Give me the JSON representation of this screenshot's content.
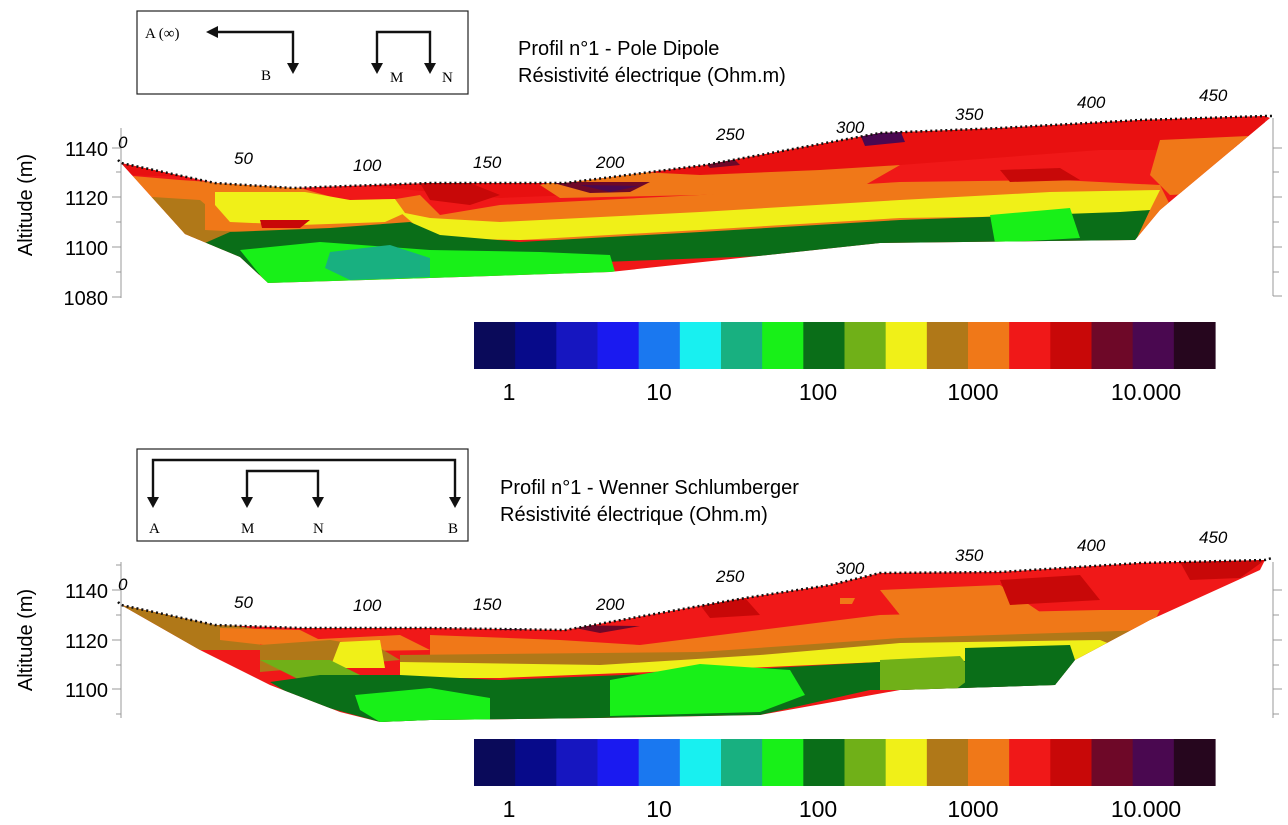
{
  "colors": [
    "#0a0a5a",
    "#070a8a",
    "#1616c0",
    "#1a1af0",
    "#1a78f0",
    "#18f0f0",
    "#18b080",
    "#18f018",
    "#0a6e18",
    "#70b018",
    "#f0f018",
    "#b07818",
    "#f07818",
    "#f01818",
    "#c80808",
    "#6e0828",
    "#4a0850",
    "#26061e"
  ],
  "colorbar_labels": [
    "1",
    "10",
    "100",
    "1000",
    "10.000"
  ],
  "profiles": [
    {
      "title": "Profil n°1 - Pole Dipole",
      "subtitle": "Résistivité électrique (Ohm.m)",
      "ylabel": "Altitude (m)",
      "y_ticks": [
        "1140",
        "1120",
        "1100",
        "1080"
      ],
      "x_ticks": [
        "0",
        "50",
        "100",
        "150",
        "200",
        "250",
        "300",
        "350",
        "400",
        "450"
      ],
      "electrodes": [
        "A (∞)",
        "B",
        "M",
        "N"
      ]
    },
    {
      "title": "Profil n°1 - Wenner Schlumberger",
      "subtitle": "Résistivité électrique (Ohm.m)",
      "ylabel": "Altitude (m)",
      "y_ticks": [
        "1140",
        "1120",
        "1100"
      ],
      "x_ticks": [
        "0",
        "50",
        "100",
        "150",
        "200",
        "250",
        "300",
        "350",
        "400",
        "450"
      ],
      "electrodes": [
        "A",
        "M",
        "N",
        "B"
      ]
    }
  ]
}
